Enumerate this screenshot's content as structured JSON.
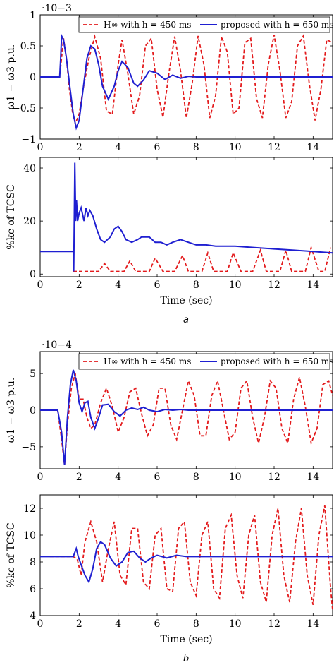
{
  "figure": {
    "label_a": "a",
    "label_b": "b"
  },
  "legend": {
    "h_label": "H∞ with h = 450 ms",
    "p_label": "proposed with h = 650 ms",
    "h_color": "#e31a1c",
    "p_color": "#1f1fd1"
  },
  "chart_data": [
    {
      "id": "a-top",
      "type": "line",
      "xlabel": "",
      "ylabel": "ω1 − ω3 p.u.",
      "exponent": "·10−3",
      "xlim": [
        0,
        15
      ],
      "ylim": [
        -1,
        1
      ],
      "xticks": [
        0,
        2,
        4,
        6,
        8,
        10,
        12,
        14
      ],
      "yticks": [
        -1,
        -0.5,
        0,
        0.5,
        1
      ],
      "yticklabels": [
        "−1",
        "−0.5",
        "0",
        "0.5",
        "1"
      ],
      "legend": "top-right",
      "series": [
        {
          "name": "H∞ with h = 450 ms",
          "style": "dashed",
          "x": [
            0,
            1.0,
            1.2,
            1.35,
            1.5,
            1.65,
            1.8,
            2.0,
            2.2,
            2.5,
            2.8,
            3.1,
            3.4,
            3.7,
            4.0,
            4.2,
            4.5,
            4.8,
            5.1,
            5.4,
            5.7,
            6.0,
            6.3,
            6.6,
            6.9,
            7.2,
            7.5,
            7.8,
            8.1,
            8.4,
            8.7,
            9.0,
            9.3,
            9.6,
            9.9,
            10.2,
            10.5,
            10.8,
            11.1,
            11.4,
            11.7,
            12.0,
            12.3,
            12.6,
            12.9,
            13.2,
            13.5,
            13.8,
            14.1,
            14.4,
            14.7,
            15.0
          ],
          "y": [
            0,
            0,
            0.62,
            0.3,
            -0.2,
            -0.55,
            -0.75,
            -0.6,
            -0.2,
            0.3,
            0.65,
            0.3,
            -0.55,
            -0.6,
            0.2,
            0.6,
            0.05,
            -0.6,
            -0.3,
            0.5,
            0.62,
            -0.2,
            -0.65,
            0.05,
            0.65,
            0.1,
            -0.66,
            -0.1,
            0.66,
            0.2,
            -0.66,
            -0.3,
            0.65,
            0.4,
            -0.6,
            -0.5,
            0.55,
            0.62,
            -0.35,
            -0.66,
            0.2,
            0.68,
            0.1,
            -0.66,
            -0.4,
            0.5,
            0.66,
            -0.1,
            -0.7,
            -0.2,
            0.6,
            0.55
          ]
        },
        {
          "name": "proposed with h = 650 ms",
          "style": "solid",
          "x": [
            0,
            0.9,
            1.0,
            1.05,
            1.1,
            1.2,
            1.35,
            1.5,
            1.7,
            1.85,
            2.0,
            2.2,
            2.4,
            2.6,
            2.8,
            3.0,
            3.2,
            3.5,
            3.8,
            4.0,
            4.2,
            4.5,
            4.8,
            5.0,
            5.3,
            5.6,
            6.0,
            6.4,
            6.8,
            7.2,
            7.6,
            8.0,
            8.5,
            9.0,
            10.0,
            11.0,
            12.0,
            13.0,
            14.0,
            15.0
          ],
          "y": [
            0,
            0,
            0.0,
            0.3,
            0.66,
            0.6,
            0.3,
            -0.1,
            -0.6,
            -0.82,
            -0.7,
            -0.2,
            0.3,
            0.5,
            0.45,
            0.2,
            -0.15,
            -0.36,
            -0.15,
            0.1,
            0.25,
            0.15,
            -0.1,
            -0.15,
            -0.05,
            0.1,
            0.06,
            -0.04,
            0.03,
            -0.02,
            0.01,
            0.0,
            0.0,
            0.0,
            0.0,
            0.0,
            0.0,
            0.0,
            0.0,
            0.0
          ]
        }
      ]
    },
    {
      "id": "a-bottom",
      "type": "line",
      "xlabel": "Time (sec)",
      "ylabel": "%kc of TCSC",
      "xlim": [
        0,
        15
      ],
      "ylim": [
        -1,
        44
      ],
      "xticks": [
        0,
        2,
        4,
        6,
        8,
        10,
        12,
        14
      ],
      "yticks": [
        0,
        20,
        40
      ],
      "yticklabels": [
        "0",
        "20",
        "40"
      ],
      "series": [
        {
          "name": "H∞ with h = 450 ms",
          "style": "dashed",
          "x": [
            1.7,
            1.75,
            1.8,
            2.0,
            2.4,
            2.8,
            3.0,
            3.3,
            3.6,
            3.9,
            4.3,
            4.6,
            4.9,
            5.3,
            5.6,
            5.9,
            6.3,
            6.6,
            6.9,
            7.3,
            7.6,
            7.9,
            8.3,
            8.6,
            8.9,
            9.3,
            9.6,
            9.9,
            10.3,
            10.6,
            10.9,
            11.3,
            11.6,
            11.9,
            12.3,
            12.6,
            12.9,
            13.3,
            13.6,
            13.9,
            14.3,
            14.6,
            14.9
          ],
          "y": [
            1,
            1,
            1,
            1,
            1,
            1,
            1,
            4,
            1,
            1,
            1,
            5,
            1,
            1,
            1,
            6,
            1,
            1,
            1,
            7,
            1,
            1,
            1,
            8,
            1,
            1,
            1,
            8,
            1,
            1,
            1,
            9,
            1,
            1,
            1,
            9,
            1,
            1,
            1,
            10,
            1,
            1,
            10
          ]
        },
        {
          "name": "proposed with h = 650 ms",
          "style": "solid",
          "x": [
            0,
            1.7,
            1.72,
            1.75,
            1.78,
            1.82,
            1.86,
            1.92,
            2.0,
            2.1,
            2.25,
            2.35,
            2.45,
            2.55,
            2.7,
            2.9,
            3.1,
            3.3,
            3.6,
            3.8,
            4.0,
            4.2,
            4.4,
            4.7,
            5.0,
            5.2,
            5.6,
            5.9,
            6.2,
            6.5,
            6.8,
            7.2,
            7.6,
            8.0,
            8.5,
            9.0,
            10.0,
            11.0,
            12.0,
            13.0,
            14.0,
            15.0
          ],
          "y": [
            8.5,
            8.5,
            1,
            20,
            42,
            20,
            28,
            20,
            23,
            25,
            20,
            25,
            22,
            24,
            22,
            17,
            13,
            12,
            14,
            17,
            18,
            16,
            13,
            12,
            13,
            14,
            14,
            12,
            12,
            11,
            12,
            13,
            12,
            11,
            11,
            10.5,
            10.5,
            10,
            9.5,
            9,
            8.5,
            8
          ]
        }
      ]
    },
    {
      "id": "b-top",
      "type": "line",
      "xlabel": "",
      "ylabel": "ω1 − ω3 p.u.",
      "exponent": "·10−4",
      "xlim": [
        0,
        15
      ],
      "ylim": [
        -8,
        8
      ],
      "xticks": [
        0,
        2,
        4,
        6,
        8,
        10,
        12,
        14
      ],
      "yticks": [
        -5,
        0,
        5
      ],
      "yticklabels": [
        "−5",
        "0",
        "5"
      ],
      "legend": "top-right",
      "series": [
        {
          "name": "H∞ with h = 450 ms",
          "style": "dashed",
          "x": [
            0,
            0.9,
            1.1,
            1.25,
            1.4,
            1.6,
            1.8,
            2.0,
            2.2,
            2.4,
            2.6,
            2.8,
            3.1,
            3.4,
            3.7,
            4.0,
            4.3,
            4.6,
            4.9,
            5.2,
            5.5,
            5.8,
            6.1,
            6.4,
            6.7,
            7.0,
            7.3,
            7.6,
            7.9,
            8.2,
            8.5,
            8.8,
            9.1,
            9.4,
            9.7,
            10.0,
            10.3,
            10.6,
            10.9,
            11.2,
            11.5,
            11.8,
            12.1,
            12.4,
            12.7,
            13.0,
            13.3,
            13.6,
            13.9,
            14.2,
            14.5,
            14.8,
            15.0
          ],
          "y": [
            0,
            0,
            -4,
            -7.5,
            -2,
            3,
            5,
            1.5,
            1.5,
            -1,
            -2.5,
            -2,
            1,
            3,
            0.5,
            -3,
            -1,
            2.5,
            3,
            -0.5,
            -3.5,
            -2,
            3,
            3,
            -2,
            -4,
            0,
            4,
            2,
            -3.5,
            -3.5,
            2,
            4,
            0,
            -4,
            -3,
            3,
            4,
            -1,
            -4.5,
            -1,
            4,
            3,
            -2.5,
            -4.5,
            1.5,
            4.5,
            0.5,
            -4.5,
            -2.5,
            3.5,
            4,
            2
          ]
        },
        {
          "name": "proposed with h = 650 ms",
          "style": "solid",
          "x": [
            0,
            0.9,
            1.1,
            1.25,
            1.4,
            1.55,
            1.7,
            1.85,
            2.0,
            2.15,
            2.3,
            2.45,
            2.6,
            2.8,
            3.0,
            3.2,
            3.5,
            3.8,
            4.1,
            4.4,
            4.7,
            5.0,
            5.3,
            5.6,
            6.0,
            6.4,
            6.8,
            7.2,
            7.6,
            8.0,
            9.0,
            10.0,
            11.0,
            12.0,
            13.0,
            14.0,
            15.0
          ],
          "y": [
            0,
            0,
            -3,
            -7.5,
            -1,
            3.5,
            5.5,
            4,
            1,
            -0.2,
            1,
            1.2,
            -1,
            -2.5,
            -1,
            0.7,
            0.8,
            -0.2,
            -0.8,
            0,
            0.3,
            0.1,
            0.4,
            0,
            -0.2,
            0.1,
            0,
            0.1,
            0,
            0,
            0,
            0,
            0,
            0,
            0,
            0,
            0
          ]
        }
      ]
    },
    {
      "id": "b-bottom",
      "type": "line",
      "xlabel": "Time (sec)",
      "ylabel": "%kc of TCSC",
      "xlim": [
        0,
        15
      ],
      "ylim": [
        4,
        13
      ],
      "xticks": [
        0,
        2,
        4,
        6,
        8,
        10,
        12,
        14
      ],
      "yticks": [
        4,
        6,
        8,
        10,
        12
      ],
      "yticklabels": [
        "4",
        "6",
        "8",
        "10",
        "12"
      ],
      "series": [
        {
          "name": "H∞ with h = 450 ms",
          "style": "dashed",
          "x": [
            0.5,
            1.7,
            1.9,
            2.1,
            2.3,
            2.6,
            2.9,
            3.2,
            3.5,
            3.8,
            4.1,
            4.4,
            4.7,
            5.0,
            5.3,
            5.6,
            5.9,
            6.2,
            6.5,
            6.8,
            7.1,
            7.4,
            7.7,
            8.0,
            8.3,
            8.6,
            8.9,
            9.2,
            9.5,
            9.8,
            10.1,
            10.4,
            10.7,
            11.0,
            11.3,
            11.6,
            11.9,
            12.2,
            12.5,
            12.8,
            13.1,
            13.4,
            13.7,
            14.0,
            14.3,
            14.6,
            14.9,
            15.0
          ],
          "y": [
            8.4,
            8.4,
            8.2,
            7.0,
            9.5,
            11.0,
            9.5,
            6.5,
            9.0,
            11.0,
            7.0,
            6.3,
            10.5,
            10.5,
            6.5,
            6.0,
            10.0,
            10.5,
            6.0,
            5.8,
            10.5,
            11.0,
            6.5,
            5.5,
            10.0,
            11.0,
            6.0,
            5.3,
            10.5,
            11.5,
            7.0,
            5.3,
            10.0,
            11.5,
            6.5,
            5.0,
            10.0,
            12.0,
            7.0,
            5.0,
            9.5,
            12.0,
            7.0,
            4.8,
            10.0,
            12.2,
            6.0,
            4.4
          ]
        },
        {
          "name": "proposed with h = 650 ms",
          "style": "solid",
          "x": [
            0,
            1.7,
            1.85,
            1.95,
            2.1,
            2.3,
            2.5,
            2.7,
            2.9,
            3.1,
            3.3,
            3.6,
            3.9,
            4.2,
            4.5,
            4.8,
            5.1,
            5.4,
            5.7,
            6.0,
            6.5,
            7.0,
            7.5,
            8.0,
            9.0,
            10.0,
            11.0,
            12.0,
            13.0,
            14.0,
            15.0
          ],
          "y": [
            8.4,
            8.4,
            9.0,
            8.4,
            7.8,
            7.0,
            6.5,
            7.5,
            9.0,
            9.5,
            9.3,
            8.3,
            7.7,
            8.0,
            8.7,
            8.8,
            8.3,
            8.0,
            8.3,
            8.5,
            8.3,
            8.5,
            8.4,
            8.4,
            8.4,
            8.4,
            8.4,
            8.4,
            8.4,
            8.4,
            8.4
          ]
        }
      ]
    }
  ]
}
